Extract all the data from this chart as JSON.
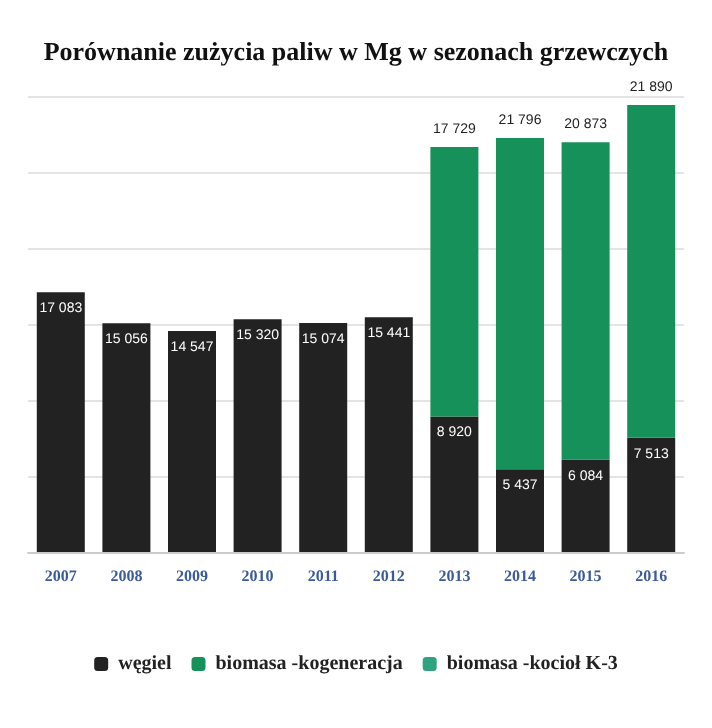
{
  "chart_data": {
    "type": "bar",
    "stacked": true,
    "title": "Porównanie zużycia paliw w Mg w sezonach grzewczych",
    "categories": [
      "2007",
      "2008",
      "2009",
      "2010",
      "2011",
      "2012",
      "2013",
      "2014",
      "2015",
      "2016"
    ],
    "series": [
      {
        "name": "węgiel",
        "color": "#222222",
        "values": [
          17083,
          15056,
          14547,
          15320,
          15074,
          15441,
          8920,
          5437,
          6084,
          7513
        ],
        "value_labels": [
          "17 083",
          "15 056",
          "14 547",
          "15 320",
          "15 074",
          "15 441",
          "8 920",
          "5 437",
          "6 084",
          "7 513"
        ]
      },
      {
        "name": "biomasa -kogeneracja",
        "color": "#16915a",
        "values": [
          null,
          null,
          null,
          null,
          null,
          null,
          17729,
          21796,
          20873,
          21890
        ],
        "value_labels": [
          null,
          null,
          null,
          null,
          null,
          null,
          "17 729",
          "21 796",
          "20 873",
          "21 890"
        ]
      },
      {
        "name": "biomasa -kocioł K-3",
        "color": "#2fa37e",
        "values": [
          null,
          null,
          null,
          null,
          null,
          null,
          null,
          null,
          null,
          null
        ]
      }
    ],
    "tick_labels": "x",
    "grid": "y",
    "legend": "bottom"
  }
}
